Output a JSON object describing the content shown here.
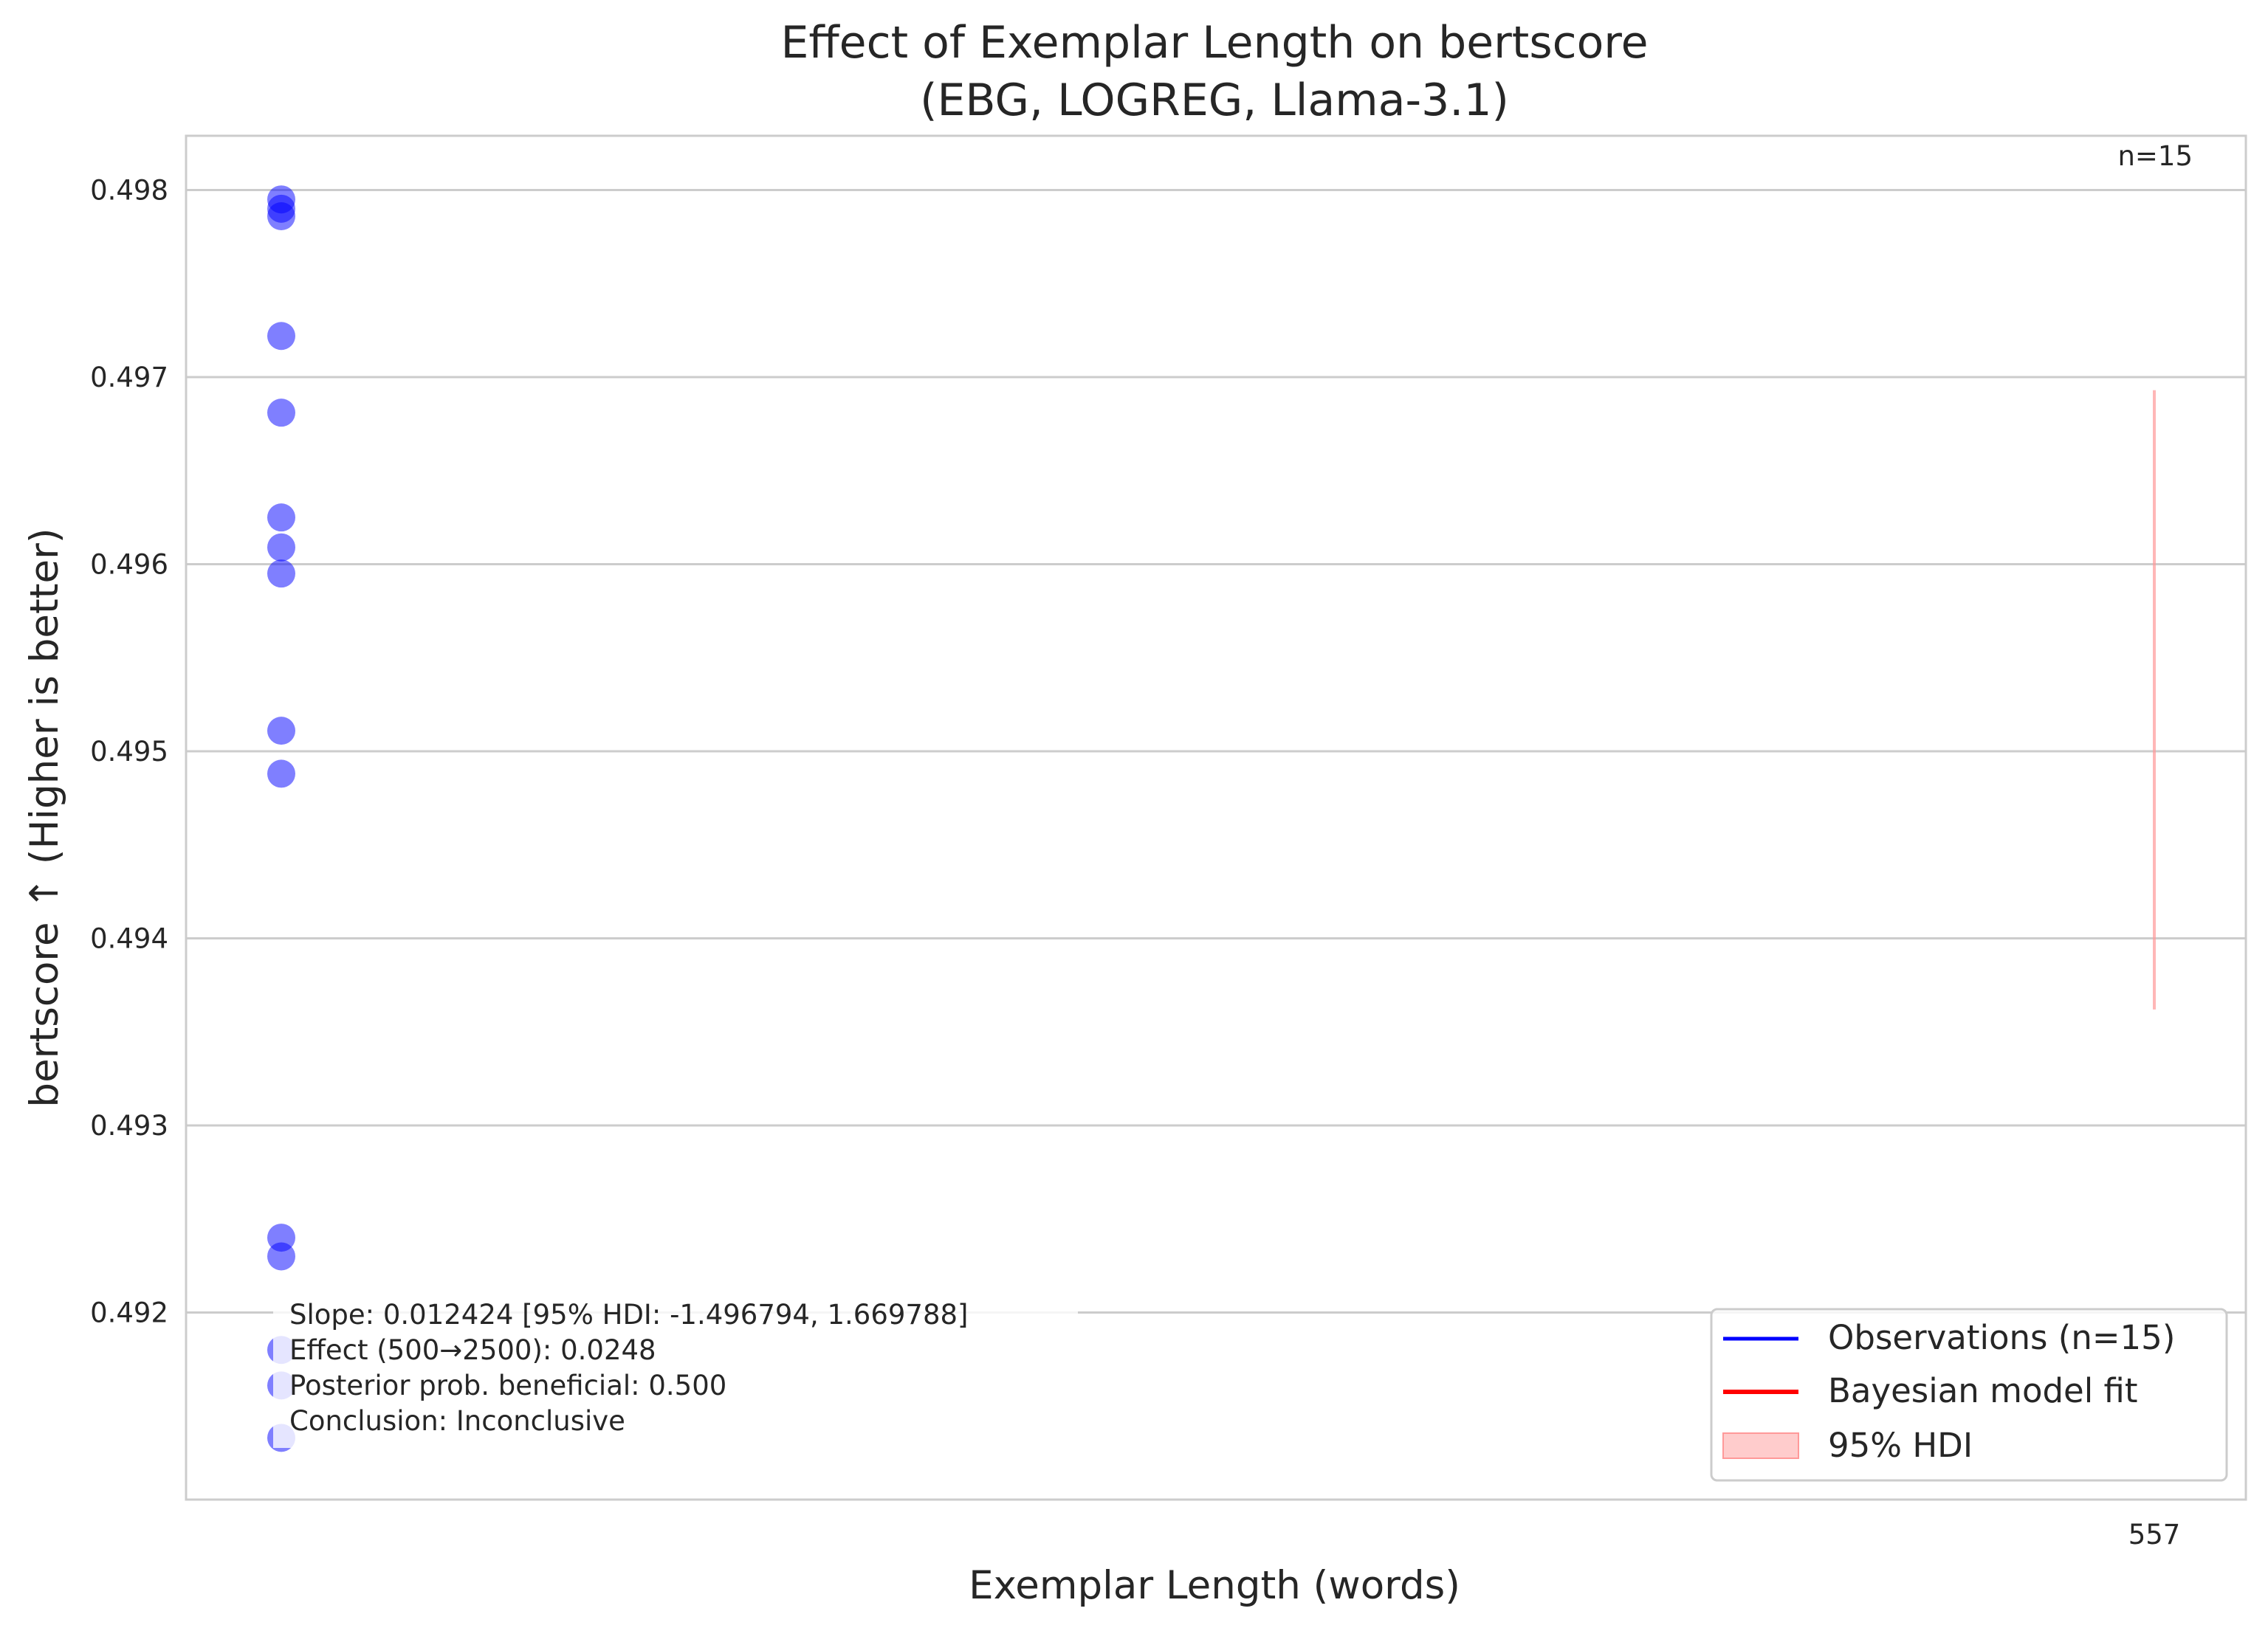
{
  "chart_data": {
    "type": "scatter",
    "title": "Effect of Exemplar Length on bertscore",
    "subtitle": "(EBG, LOGREG, Llama-3.1)",
    "xlabel": "Exemplar Length (words)",
    "ylabel": "bertscore ↑ (Higher is better)",
    "x_ticks": [
      "557"
    ],
    "y_ticks": [
      "0.492",
      "0.493",
      "0.494",
      "0.495",
      "0.496",
      "0.497",
      "0.498"
    ],
    "ylim": [
      0.491,
      0.49829
    ],
    "grid": "horizontal",
    "n_label": "n=15",
    "series": [
      {
        "name": "Observations (n=15)",
        "color": "#0000ff",
        "points": [
          {
            "x": 500,
            "y": 0.49795
          },
          {
            "x": 500,
            "y": 0.4979
          },
          {
            "x": 500,
            "y": 0.49786
          },
          {
            "x": 500,
            "y": 0.49722
          },
          {
            "x": 500,
            "y": 0.49681
          },
          {
            "x": 500,
            "y": 0.49625
          },
          {
            "x": 500,
            "y": 0.49609
          },
          {
            "x": 500,
            "y": 0.49595
          },
          {
            "x": 500,
            "y": 0.49511
          },
          {
            "x": 500,
            "y": 0.49488
          },
          {
            "x": 500,
            "y": 0.4924
          },
          {
            "x": 500,
            "y": 0.4923
          },
          {
            "x": 500,
            "y": 0.4918
          },
          {
            "x": 500,
            "y": 0.49161
          },
          {
            "x": 500,
            "y": 0.49133
          }
        ]
      }
    ],
    "hdi_band": {
      "x": 557,
      "lower": 0.49362,
      "upper": 0.49693,
      "color": "#ff9999"
    },
    "legend": {
      "position": "lower-right",
      "items": [
        {
          "label": "Observations (n=15)",
          "color": "#0000ff",
          "kind": "line"
        },
        {
          "label": "Bayesian model fit",
          "color": "#ff0000",
          "kind": "line"
        },
        {
          "label": "95% HDI",
          "color": "#ffcccc",
          "kind": "patch"
        }
      ]
    },
    "stats_text": [
      "Slope: 0.012424 [95% HDI: -1.496794, 1.669788]",
      "Effect (500→2500): 0.0248",
      "Posterior prob. beneficial: 0.500",
      "Conclusion: Inconclusive"
    ]
  }
}
